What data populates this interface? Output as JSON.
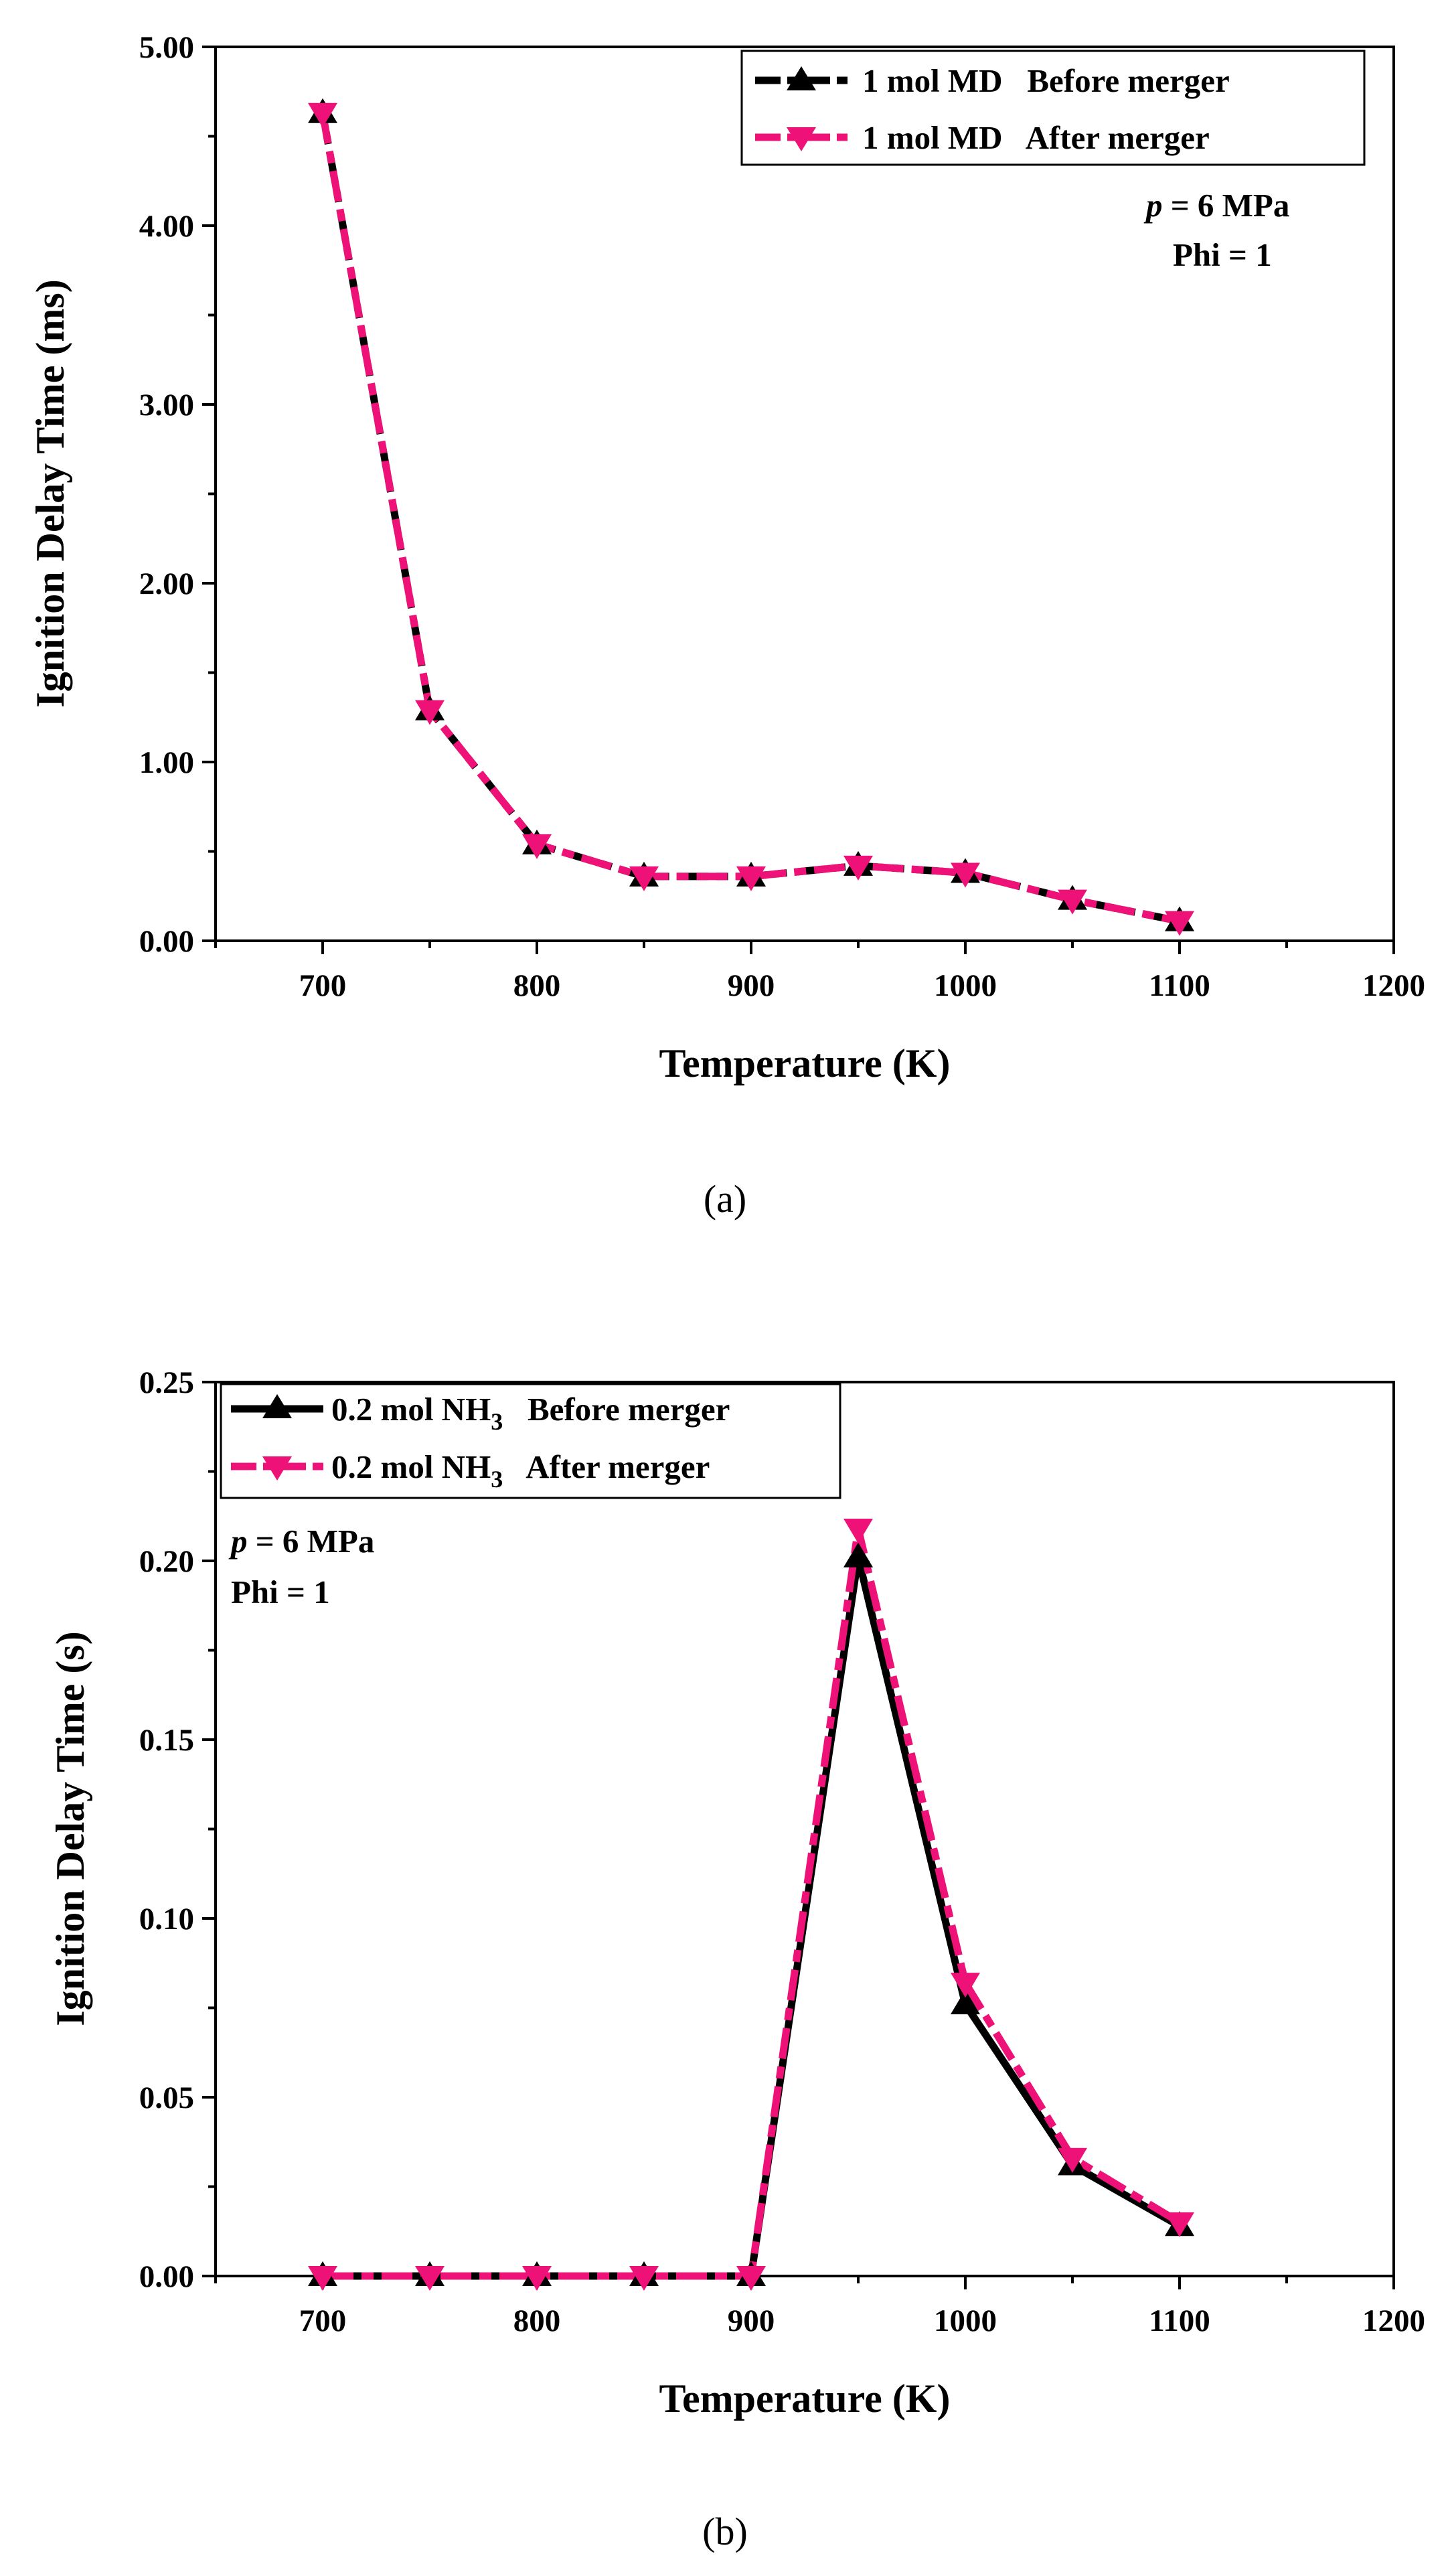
{
  "chart_data": [
    {
      "type": "line",
      "caption": "(a)",
      "xlabel": "Temperature (K)",
      "ylabel": "Ignition Delay Time (ms)",
      "xlim": [
        650,
        1200
      ],
      "ylim": [
        0,
        5
      ],
      "xticks": [
        "700",
        "800",
        "900",
        "1000",
        "1100",
        "1200"
      ],
      "yticks": [
        "0.00",
        "1.00",
        "2.00",
        "3.00",
        "4.00",
        "5.00"
      ],
      "x": [
        700,
        750,
        800,
        850,
        900,
        950,
        1000,
        1050,
        1100
      ],
      "series": [
        {
          "name": "1 mol MD   Before merger",
          "color": "#000000",
          "marker": "triangle-up",
          "values": [
            4.63,
            1.29,
            0.54,
            0.36,
            0.36,
            0.42,
            0.38,
            0.23,
            0.11
          ]
        },
        {
          "name": "1 mol MD   After merger",
          "color": "#ee1177",
          "marker": "triangle-down",
          "values": [
            4.63,
            1.29,
            0.54,
            0.36,
            0.36,
            0.42,
            0.38,
            0.23,
            0.11
          ]
        }
      ],
      "annotations": {
        "pressure_var": "p",
        "pressure_rest": " = 6 MPa",
        "phi": "Phi = 1"
      },
      "legend_position": "top-right",
      "grid": false
    },
    {
      "type": "line",
      "caption": "(b)",
      "xlabel": "Temperature (K)",
      "ylabel": "Ignition Delay Time (s)",
      "xlim": [
        650,
        1200
      ],
      "ylim": [
        0,
        0.25
      ],
      "xticks": [
        "700",
        "800",
        "900",
        "1000",
        "1100",
        "1200"
      ],
      "yticks": [
        "0.00",
        "0.05",
        "0.10",
        "0.15",
        "0.20",
        "0.25"
      ],
      "x": [
        700,
        750,
        800,
        850,
        900,
        950,
        1000,
        1050,
        1100
      ],
      "series": [
        {
          "name": "0.2 mol NH3   Before merger",
          "label_main": "0.2 mol NH",
          "label_sub": "3",
          "label_tail": "   Before merger",
          "color": "#000000",
          "marker": "triangle-up",
          "values": [
            0,
            0,
            0,
            0,
            0,
            0.201,
            0.076,
            0.031,
            0.014
          ]
        },
        {
          "name": "0.2 mol NH3   After merger",
          "label_main": "0.2 mol NH",
          "label_sub": "3",
          "label_tail": "   After merger",
          "color": "#ee1177",
          "marker": "triangle-down",
          "values": [
            0,
            0,
            0,
            0,
            0,
            0.209,
            0.082,
            0.033,
            0.015
          ]
        }
      ],
      "annotations": {
        "pressure_var": "p",
        "pressure_rest": " = 6 MPa",
        "phi": "Phi = 1"
      },
      "legend_position": "top-left",
      "grid": false
    }
  ]
}
